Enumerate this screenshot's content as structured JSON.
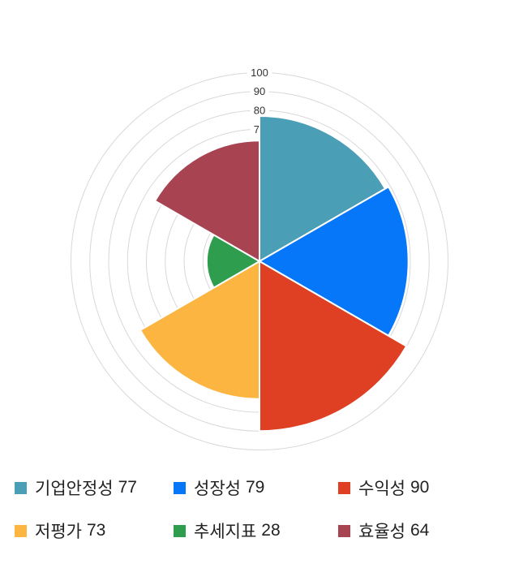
{
  "chart_data": {
    "type": "polar-rose",
    "title": "",
    "categories": [
      "기업안정성",
      "성장성",
      "수익성",
      "저평가",
      "추세지표",
      "효율성"
    ],
    "values": [
      77,
      79,
      90,
      73,
      28,
      64
    ],
    "series": [
      {
        "key": "stability",
        "name": "기업안정성",
        "value": 77,
        "color": "#4A9EB5"
      },
      {
        "key": "growth",
        "name": "성장성",
        "value": 79,
        "color": "#0777FA"
      },
      {
        "key": "profitability",
        "name": "수익성",
        "value": 90,
        "color": "#DF4023"
      },
      {
        "key": "undervaluation",
        "name": "저평가",
        "value": 73,
        "color": "#FBB540"
      },
      {
        "key": "trend",
        "name": "추세지표",
        "value": 28,
        "color": "#2E9E4E"
      },
      {
        "key": "efficiency",
        "name": "효율성",
        "value": 64,
        "color": "#A84452"
      }
    ],
    "axis": {
      "min": 0,
      "max": 100,
      "tick_step": 10,
      "visible_tick_labels": [
        "100",
        "90",
        "80",
        "7"
      ]
    },
    "layout_hints": {
      "start_angle": "top",
      "direction": "clockwise",
      "sector_angle_deg": 60,
      "grid": "concentric-circles",
      "legend_position": "bottom"
    },
    "grid_color": "#D8D8D8",
    "tick_label_color": "#333333",
    "sector_gap_color": "#FFFFFF"
  }
}
